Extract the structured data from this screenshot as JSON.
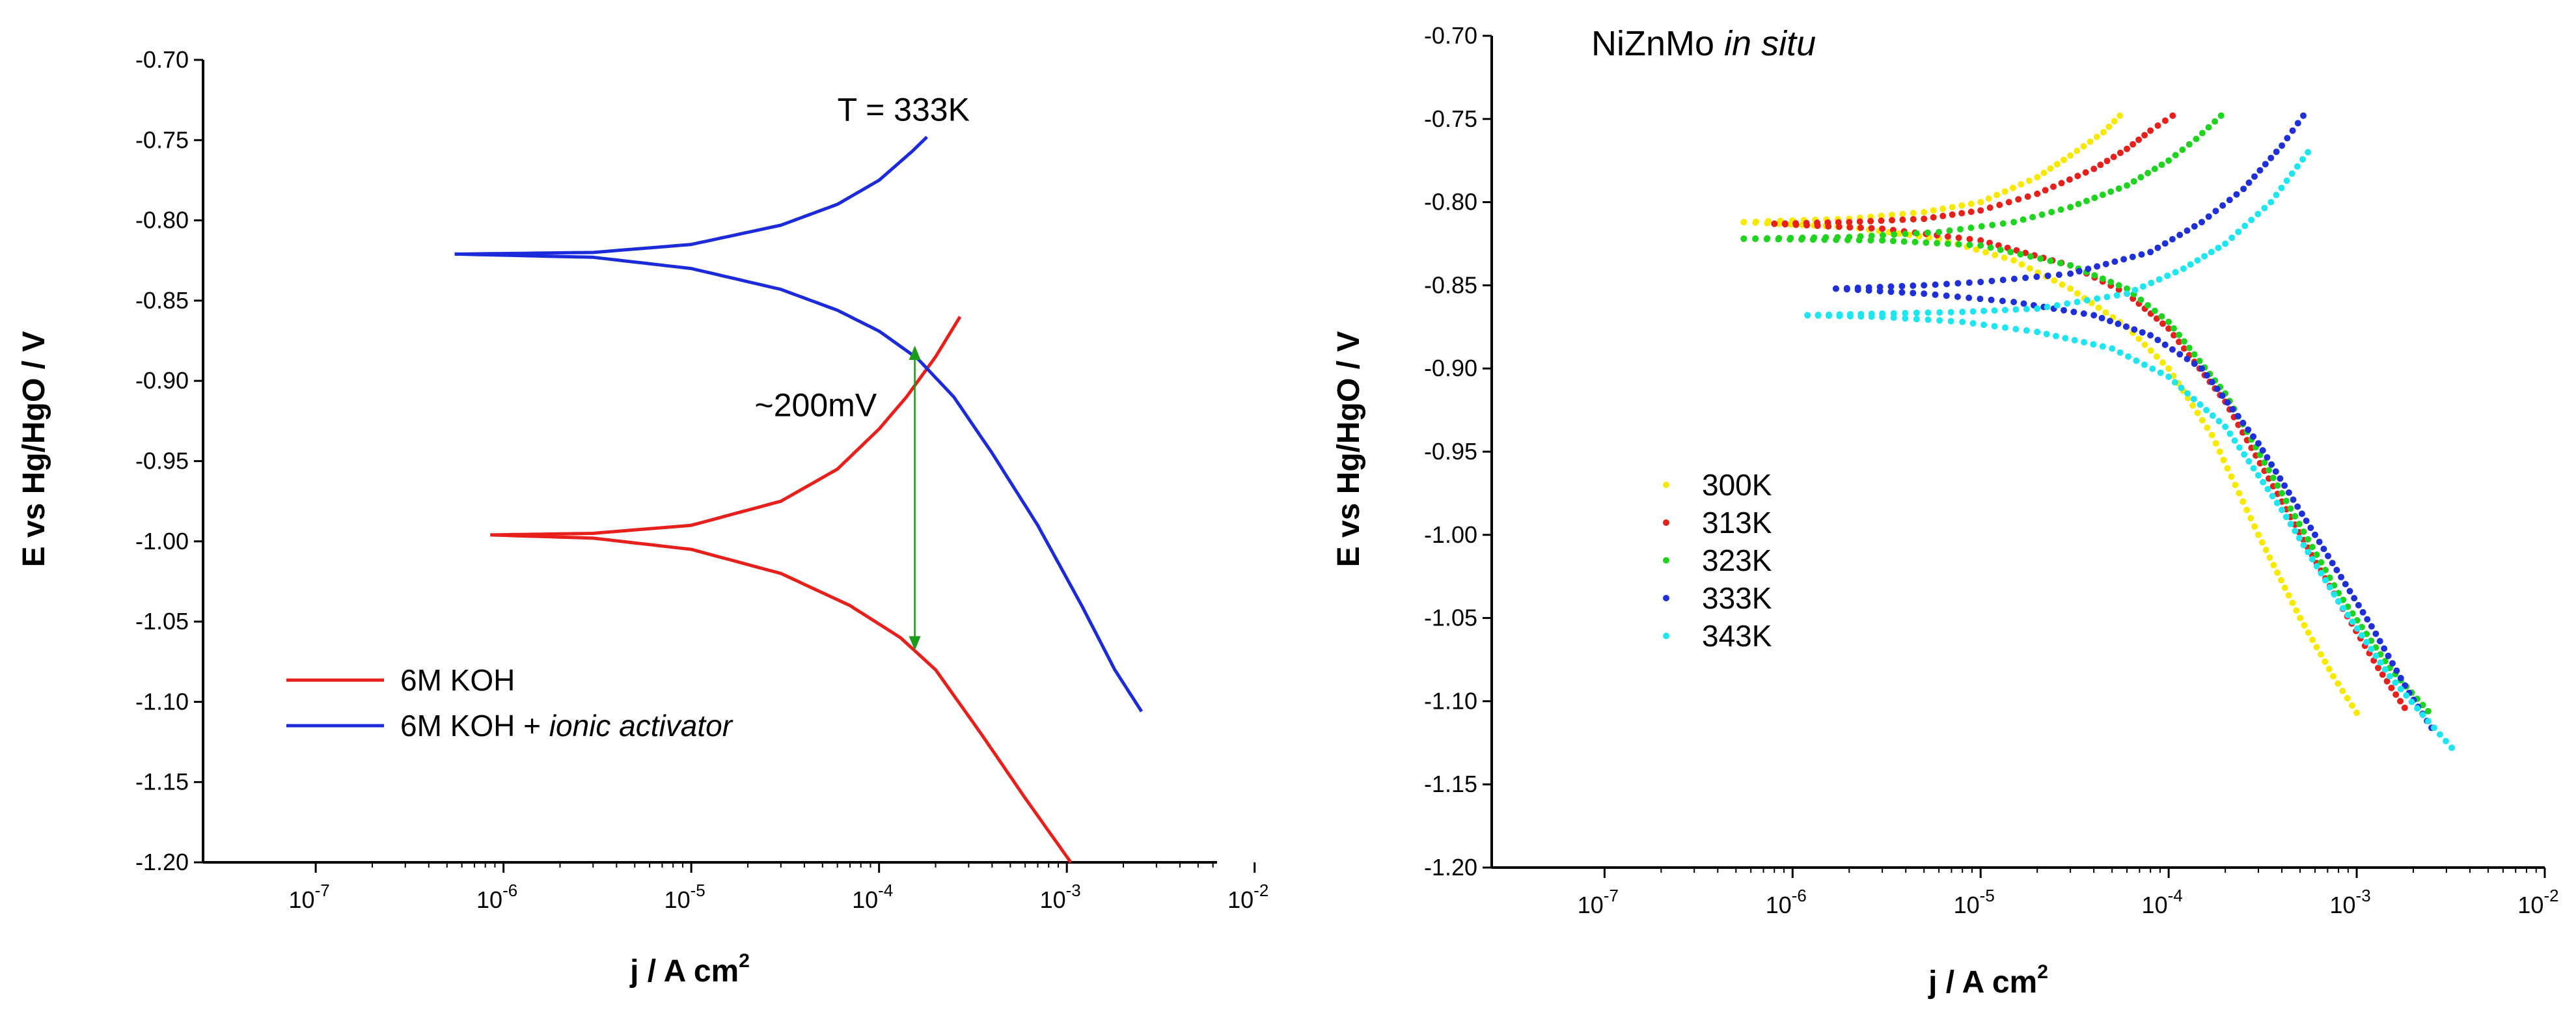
{
  "chart_data": [
    {
      "type": "line",
      "xscale": "log",
      "xlabel_main": "j / A cm",
      "xlabel_exp": "2",
      "ylabel": "E vs Hg/HgO  /  V",
      "ylim": [
        -1.2,
        -0.7
      ],
      "xlim_exp": [
        -7.6,
        -2.2
      ],
      "ytick_values": [
        -0.7,
        -0.75,
        -0.8,
        -0.85,
        -0.9,
        -0.95,
        -1.0,
        -1.05,
        -1.1,
        -1.15,
        -1.2
      ],
      "ytick_labels": [
        "-0.70",
        "-0.75",
        "-0.80",
        "-0.85",
        "-0.90",
        "-0.95",
        "-1.00",
        "-1.05",
        "-1.10",
        "-1.15",
        "-1.20"
      ],
      "xtick_exps": [
        -7,
        -6,
        -5,
        -4,
        -3,
        -2
      ],
      "xtick_base": "10",
      "xtick_sup": [
        "-7",
        "-6",
        "-5",
        "-4",
        "-3",
        "-2"
      ],
      "annotations": [
        {
          "text": "T = 333K",
          "x": 0.000135,
          "y": -0.738
        },
        {
          "text": "~200mV",
          "x": 4.6e-05,
          "y": -0.922
        }
      ],
      "arrow": {
        "x": 0.000155,
        "y_top": -0.878,
        "y_bottom": -1.068,
        "color": "#1a9c1a"
      },
      "series": [
        {
          "name": "6M KOH",
          "legend_main": "6M KOH",
          "legend_italic": "",
          "color": "#e8201c",
          "branches": [
            {
              "x": [
                8.5e-07,
                3e-06,
                1e-05,
                3e-05,
                6e-05,
                0.0001,
                0.00014,
                0.0002,
                0.00027
              ],
              "y": [
                -0.996,
                -0.995,
                -0.99,
                -0.975,
                -0.955,
                -0.93,
                -0.91,
                -0.885,
                -0.86
              ]
            },
            {
              "x": [
                8.5e-07,
                3e-06,
                1e-05,
                3e-05,
                7e-05,
                0.00013,
                0.0002,
                0.00035,
                0.0006,
                0.00105
              ],
              "y": [
                -0.996,
                -0.998,
                -1.005,
                -1.02,
                -1.04,
                -1.06,
                -1.08,
                -1.12,
                -1.16,
                -1.2
              ]
            }
          ]
        },
        {
          "name": "6M KOH + ionic activator",
          "legend_main": "6M KOH + ",
          "legend_italic": "ionic activator",
          "color": "#1c2bd9",
          "branches": [
            {
              "x": [
                5.5e-07,
                3e-06,
                1e-05,
                3e-05,
                6e-05,
                0.0001,
                0.00015,
                0.00018
              ],
              "y": [
                -0.821,
                -0.82,
                -0.815,
                -0.803,
                -0.79,
                -0.775,
                -0.757,
                -0.748
              ]
            },
            {
              "x": [
                5.5e-07,
                3e-06,
                1e-05,
                3e-05,
                6e-05,
                0.0001,
                0.00016,
                0.00025,
                0.0004,
                0.0007,
                0.0012,
                0.0018,
                0.0025
              ],
              "y": [
                -0.821,
                -0.823,
                -0.83,
                -0.843,
                -0.856,
                -0.869,
                -0.886,
                -0.91,
                -0.945,
                -0.99,
                -1.04,
                -1.08,
                -1.106
              ]
            }
          ]
        }
      ]
    },
    {
      "type": "scatter",
      "xscale": "log",
      "title_main": "NiZnMo ",
      "title_italic": "in situ",
      "xlabel_main": "j / A cm",
      "xlabel_exp": "2",
      "ylabel": "E vs Hg/HgO  /  V",
      "ylim": [
        -1.2,
        -0.7
      ],
      "xlim_exp": [
        -7.6,
        -2.0
      ],
      "ytick_values": [
        -0.7,
        -0.75,
        -0.8,
        -0.85,
        -0.9,
        -0.95,
        -1.0,
        -1.05,
        -1.1,
        -1.15,
        -1.2
      ],
      "ytick_labels": [
        "-0.70",
        "-0.75",
        "-0.80",
        "-0.85",
        "-0.90",
        "-0.95",
        "-1.00",
        "-1.05",
        "-1.10",
        "-1.15",
        "-1.20"
      ],
      "xtick_exps": [
        -7,
        -6,
        -5,
        -4,
        -3,
        -2
      ],
      "xtick_base": "10",
      "xtick_sup": [
        "-7",
        "-6",
        "-5",
        "-4",
        "-3",
        "-2"
      ],
      "series": [
        {
          "name": "300K",
          "color": "#f7ea00",
          "branches": [
            {
              "x": [
                5.5e-07,
                1e-06,
                2e-06,
                5e-06,
                1e-05,
                2e-05,
                3e-05,
                4.5e-05,
                5.5e-05
              ],
              "y": [
                -0.812,
                -0.811,
                -0.81,
                -0.806,
                -0.8,
                -0.785,
                -0.772,
                -0.758,
                -0.748
              ]
            },
            {
              "x": [
                5.5e-07,
                2e-06,
                6e-06,
                1.5e-05,
                3e-05,
                6e-05,
                0.0001,
                0.00017,
                0.0003,
                0.0005,
                0.00075,
                0.001
              ],
              "y": [
                -0.812,
                -0.815,
                -0.822,
                -0.835,
                -0.852,
                -0.875,
                -0.9,
                -0.94,
                -1.0,
                -1.05,
                -1.085,
                -1.107
              ]
            }
          ]
        },
        {
          "name": "313K",
          "color": "#e8201c",
          "branches": [
            {
              "x": [
                8e-07,
                2e-06,
                5e-06,
                1e-05,
                2e-05,
                4e-05,
                6e-05,
                8e-05,
                0.000105
              ],
              "y": [
                -0.813,
                -0.812,
                -0.81,
                -0.805,
                -0.795,
                -0.78,
                -0.768,
                -0.757,
                -0.748
              ]
            },
            {
              "x": [
                8e-07,
                3e-06,
                1e-05,
                3e-05,
                6e-05,
                0.0001,
                0.0002,
                0.0004,
                0.0008,
                0.0013,
                0.0018
              ],
              "y": [
                -0.813,
                -0.816,
                -0.823,
                -0.838,
                -0.855,
                -0.876,
                -0.92,
                -0.98,
                -1.04,
                -1.08,
                -1.104
              ]
            }
          ]
        },
        {
          "name": "323K",
          "color": "#1ed41e",
          "branches": [
            {
              "x": [
                5.5e-07,
                2e-06,
                6e-06,
                1.5e-05,
                3e-05,
                6e-05,
                0.0001,
                0.00014,
                0.00019
              ],
              "y": [
                -0.822,
                -0.821,
                -0.818,
                -0.812,
                -0.803,
                -0.79,
                -0.775,
                -0.762,
                -0.748
              ]
            },
            {
              "x": [
                5.5e-07,
                3e-06,
                1e-05,
                3e-05,
                6e-05,
                0.0001,
                0.0002,
                0.0004,
                0.0008,
                0.0015,
                0.0024
              ],
              "y": [
                -0.822,
                -0.823,
                -0.826,
                -0.838,
                -0.852,
                -0.872,
                -0.915,
                -0.975,
                -1.035,
                -1.08,
                -1.106
              ]
            }
          ]
        },
        {
          "name": "333K",
          "color": "#2030d8",
          "branches": [
            {
              "x": [
                1.7e-06,
                5e-06,
                1e-05,
                3e-05,
                8e-05,
                0.00015,
                0.00025,
                0.0004,
                0.00052
              ],
              "y": [
                -0.852,
                -0.85,
                -0.848,
                -0.843,
                -0.83,
                -0.812,
                -0.792,
                -0.766,
                -0.748
              ]
            },
            {
              "x": [
                1.7e-06,
                5e-06,
                1.5e-05,
                4e-05,
                8e-05,
                0.00015,
                0.0003,
                0.0006,
                0.0012,
                0.0019,
                0.0025
              ],
              "y": [
                -0.852,
                -0.855,
                -0.86,
                -0.868,
                -0.88,
                -0.9,
                -0.945,
                -1.0,
                -1.055,
                -1.095,
                -1.116
              ]
            }
          ]
        },
        {
          "name": "343K",
          "color": "#1ee6f0",
          "branches": [
            {
              "x": [
                1.2e-06,
                3e-06,
                8e-06,
                2e-05,
                6e-05,
                0.00012,
                0.0002,
                0.00035,
                0.00055
              ],
              "y": [
                -0.868,
                -0.867,
                -0.866,
                -0.864,
                -0.855,
                -0.84,
                -0.825,
                -0.8,
                -0.77
              ]
            },
            {
              "x": [
                1.2e-06,
                3e-06,
                8e-06,
                2e-05,
                5e-05,
                0.0001,
                0.0002,
                0.0004,
                0.0008,
                0.0015,
                0.0024,
                0.0032
              ],
              "y": [
                -0.868,
                -0.869,
                -0.872,
                -0.878,
                -0.888,
                -0.905,
                -0.935,
                -0.985,
                -1.04,
                -1.085,
                -1.112,
                -1.128
              ]
            }
          ]
        }
      ]
    }
  ]
}
